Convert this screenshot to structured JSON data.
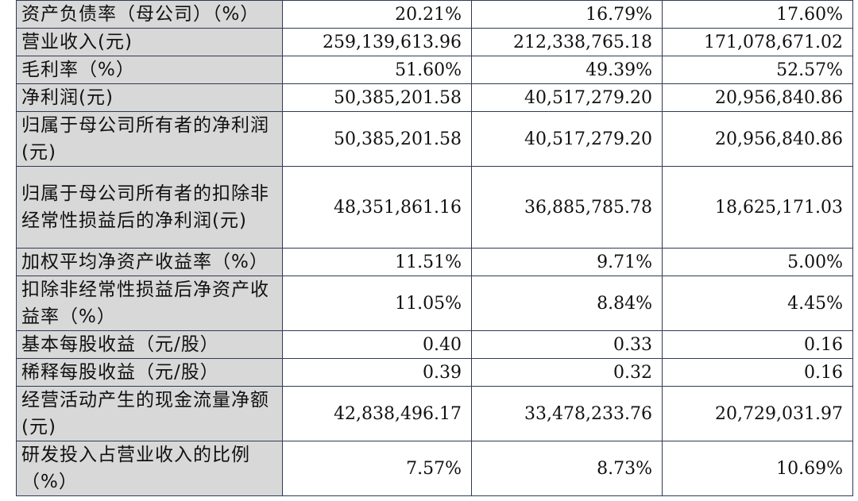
{
  "table": {
    "rows": [
      {
        "label": "资产负债率（母公司）（%）",
        "values": [
          "20.21%",
          "16.79%",
          "17.60%"
        ],
        "lines": 1
      },
      {
        "label": "营业收入(元)",
        "values": [
          "259,139,613.96",
          "212,338,765.18",
          "171,078,671.02"
        ],
        "lines": 1
      },
      {
        "label": "毛利率（%）",
        "values": [
          "51.60%",
          "49.39%",
          "52.57%"
        ],
        "lines": 1
      },
      {
        "label": "净利润(元)",
        "values": [
          "50,385,201.58",
          "40,517,279.20",
          "20,956,840.86"
        ],
        "lines": 1
      },
      {
        "label": "归属于母公司所有者的净利润(元)",
        "values": [
          "50,385,201.58",
          "40,517,279.20",
          "20,956,840.86"
        ],
        "lines": 2
      },
      {
        "label": "归属于母公司所有者的扣除非经常性损益后的净利润(元)",
        "values": [
          "48,351,861.16",
          "36,885,785.78",
          "18,625,171.03"
        ],
        "lines": 3
      },
      {
        "label": "加权平均净资产收益率（%）",
        "values": [
          "11.51%",
          "9.71%",
          "5.00%"
        ],
        "lines": 1
      },
      {
        "label": "扣除非经常性损益后净资产收益率（%）",
        "values": [
          "11.05%",
          "8.84%",
          "4.45%"
        ],
        "lines": 2
      },
      {
        "label": "基本每股收益（元/股）",
        "values": [
          "0.40",
          "0.33",
          "0.16"
        ],
        "lines": 1
      },
      {
        "label": "稀释每股收益（元/股）",
        "values": [
          "0.39",
          "0.32",
          "0.16"
        ],
        "lines": 1
      },
      {
        "label": "经营活动产生的现金流量净额(元)",
        "values": [
          "42,838,496.17",
          "33,478,233.76",
          "20,729,031.97"
        ],
        "lines": 2
      },
      {
        "label": "研发投入占营业收入的比例（%）",
        "values": [
          "7.57%",
          "8.73%",
          "10.69%"
        ],
        "lines": 2
      }
    ]
  }
}
